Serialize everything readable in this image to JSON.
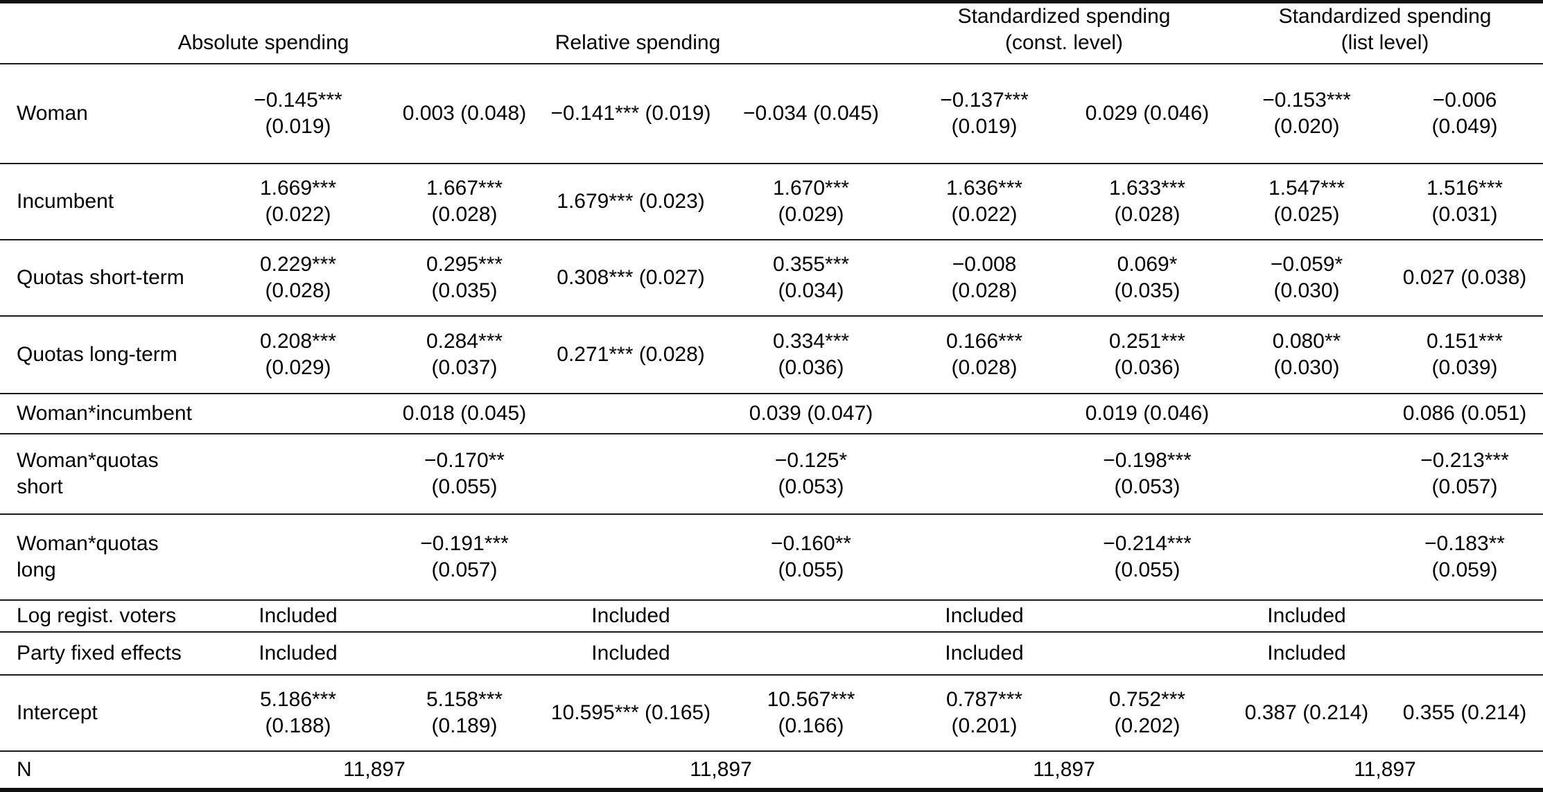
{
  "table": {
    "column_groups": [
      {
        "lines": [
          "Absolute spending"
        ]
      },
      {
        "lines": [
          "Relative spending"
        ]
      },
      {
        "lines": [
          "Standardized spending",
          "(const. level)"
        ]
      },
      {
        "lines": [
          "Standardized spending",
          "(list level)"
        ]
      }
    ],
    "rows": [
      {
        "label": [
          "Woman"
        ],
        "cells": [
          [
            "−0.145***",
            "(0.019)"
          ],
          [
            "0.003 (0.048)"
          ],
          [
            "−0.141*** (0.019)"
          ],
          [
            "−0.034 (0.045)"
          ],
          [
            "−0.137***",
            "(0.019)"
          ],
          [
            "0.029 (0.046)"
          ],
          [
            "−0.153***",
            "(0.020)"
          ],
          [
            "−0.006",
            "(0.049)"
          ]
        ]
      },
      {
        "label": [
          "Incumbent"
        ],
        "cells": [
          [
            "1.669***",
            "(0.022)"
          ],
          [
            "1.667***",
            "(0.028)"
          ],
          [
            "1.679*** (0.023)"
          ],
          [
            "1.670***",
            "(0.029)"
          ],
          [
            "1.636***",
            "(0.022)"
          ],
          [
            "1.633***",
            "(0.028)"
          ],
          [
            "1.547***",
            "(0.025)"
          ],
          [
            "1.516***",
            "(0.031)"
          ]
        ]
      },
      {
        "label": [
          "Quotas short-term"
        ],
        "cells": [
          [
            "0.229***",
            "(0.028)"
          ],
          [
            "0.295***",
            "(0.035)"
          ],
          [
            "0.308*** (0.027)"
          ],
          [
            "0.355***",
            "(0.034)"
          ],
          [
            "−0.008",
            "(0.028)"
          ],
          [
            "0.069*",
            "(0.035)"
          ],
          [
            "−0.059*",
            "(0.030)"
          ],
          [
            "0.027 (0.038)"
          ]
        ]
      },
      {
        "label": [
          "Quotas long-term"
        ],
        "cells": [
          [
            "0.208***",
            "(0.029)"
          ],
          [
            "0.284***",
            "(0.037)"
          ],
          [
            "0.271*** (0.028)"
          ],
          [
            "0.334***",
            "(0.036)"
          ],
          [
            "0.166***",
            "(0.028)"
          ],
          [
            "0.251***",
            "(0.036)"
          ],
          [
            "0.080**",
            "(0.030)"
          ],
          [
            "0.151***",
            "(0.039)"
          ]
        ]
      },
      {
        "label": [
          "Woman*incumbent"
        ],
        "cells": [
          [],
          [
            "0.018 (0.045)"
          ],
          [],
          [
            "0.039 (0.047)"
          ],
          [],
          [
            "0.019 (0.046)"
          ],
          [],
          [
            "0.086 (0.051)"
          ]
        ]
      },
      {
        "label": [
          "Woman*quotas",
          "short"
        ],
        "cells": [
          [],
          [
            "−0.170**",
            "(0.055)"
          ],
          [],
          [
            "−0.125*",
            "(0.053)"
          ],
          [],
          [
            "−0.198***",
            "(0.053)"
          ],
          [],
          [
            "−0.213***",
            "(0.057)"
          ]
        ]
      },
      {
        "label": [
          "Woman*quotas",
          "long"
        ],
        "cells": [
          [],
          [
            "−0.191***",
            "(0.057)"
          ],
          [],
          [
            "−0.160**",
            "(0.055)"
          ],
          [],
          [
            "−0.214***",
            "(0.055)"
          ],
          [],
          [
            "−0.183**",
            "(0.059)"
          ]
        ]
      },
      {
        "label": [
          "Log regist. voters"
        ],
        "cells": [
          [
            "Included"
          ],
          [],
          [
            "Included"
          ],
          [],
          [
            "Included"
          ],
          [],
          [
            "Included"
          ],
          []
        ]
      },
      {
        "label": [
          "Party fixed effects"
        ],
        "cells": [
          [
            "Included"
          ],
          [],
          [
            "Included"
          ],
          [],
          [
            "Included"
          ],
          [],
          [
            "Included"
          ],
          []
        ]
      },
      {
        "label": [
          "Intercept"
        ],
        "cells": [
          [
            "5.186***",
            "(0.188)"
          ],
          [
            "5.158***",
            "(0.189)"
          ],
          [
            "10.595*** (0.165)"
          ],
          [
            "10.567***",
            "(0.166)"
          ],
          [
            "0.787***",
            "(0.201)"
          ],
          [
            "0.752***",
            "(0.202)"
          ],
          [
            "0.387 (0.214)"
          ],
          [
            "0.355 (0.214)"
          ]
        ]
      },
      {
        "label": [
          "N"
        ],
        "wide_values": [
          "11,897",
          "11,897",
          "11,897",
          "11,897"
        ]
      }
    ]
  }
}
